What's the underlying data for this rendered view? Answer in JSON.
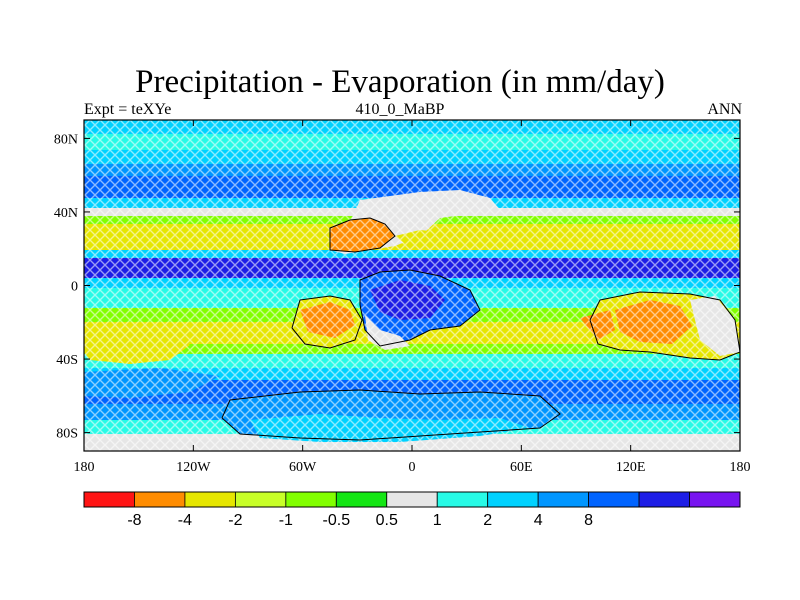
{
  "title": "Precipitation - Evaporation (in mm/day)",
  "subtitle_left": "Expt = teXYe",
  "subtitle_center": "410_0_MaBP",
  "subtitle_right": "ANN",
  "map": {
    "lat_ticks": [
      {
        "value": 80,
        "label": "80N"
      },
      {
        "value": 40,
        "label": "40N"
      },
      {
        "value": 0,
        "label": "0"
      },
      {
        "value": -40,
        "label": "40S"
      },
      {
        "value": -80,
        "label": "80S"
      }
    ],
    "lon_ticks": [
      {
        "value": -180,
        "label": "180"
      },
      {
        "value": -120,
        "label": "120W"
      },
      {
        "value": -60,
        "label": "60W"
      },
      {
        "value": 0,
        "label": "0"
      },
      {
        "value": 60,
        "label": "60E"
      },
      {
        "value": 120,
        "label": "120E"
      },
      {
        "value": 180,
        "label": "180"
      }
    ],
    "lon_range": [
      -180,
      180
    ],
    "lat_range": [
      -90,
      90
    ]
  },
  "colorbar": {
    "colors": [
      "#ff1414",
      "#ff8c00",
      "#e6e600",
      "#c8ff28",
      "#82ff00",
      "#14e614",
      "#e6e6e6",
      "#28fae6",
      "#00d2ff",
      "#0096ff",
      "#0064ff",
      "#1e1ee6",
      "#7814f0"
    ],
    "labels": [
      "-8",
      "-4",
      "-2",
      "-1",
      "-0.5",
      "0.5",
      "1",
      "2",
      "4",
      "8"
    ]
  }
}
